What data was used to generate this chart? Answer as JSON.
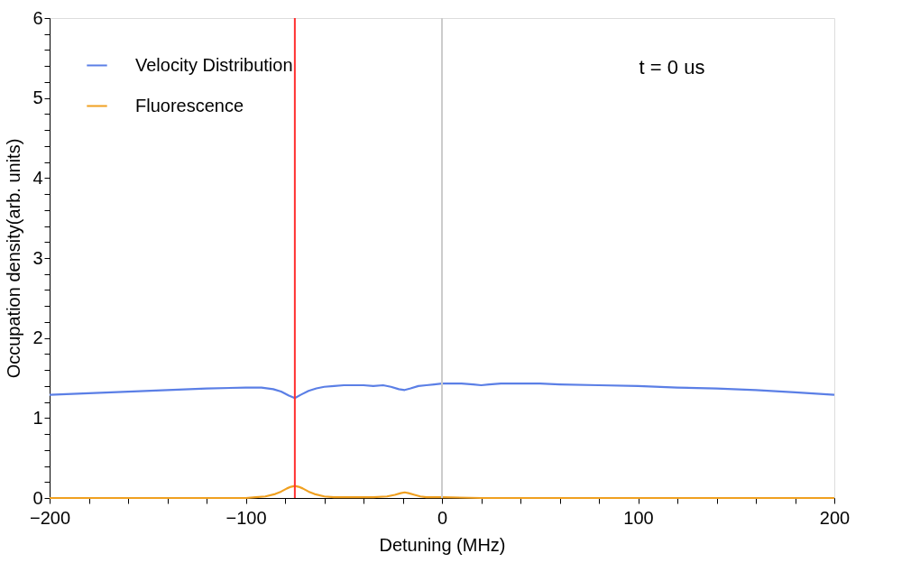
{
  "chart_data": {
    "type": "line",
    "xlabel": "Detuning (MHz)",
    "ylabel": "Occupation density(arb. units)",
    "xlim": [
      -200,
      200
    ],
    "ylim": [
      0,
      6
    ],
    "xticks": [
      -200,
      {
        "value": -180,
        "label": null
      },
      {
        "value": -160,
        "label": null
      },
      {
        "value": -140,
        "label": null
      },
      {
        "value": -120,
        "label": null
      },
      -100,
      {
        "value": -80,
        "label": null
      },
      {
        "value": -60,
        "label": null
      },
      {
        "value": -40,
        "label": null
      },
      {
        "value": -20,
        "label": null
      },
      0,
      {
        "value": 20,
        "label": null
      },
      {
        "value": 40,
        "label": null
      },
      {
        "value": 60,
        "label": null
      },
      {
        "value": 80,
        "label": null
      },
      100,
      {
        "value": 120,
        "label": null
      },
      {
        "value": 140,
        "label": null
      },
      {
        "value": 160,
        "label": null
      },
      {
        "value": 180,
        "label": null
      },
      200
    ],
    "yticks": [
      0,
      {
        "value": 0.2,
        "label": null
      },
      {
        "value": 0.4,
        "label": null
      },
      {
        "value": 0.6,
        "label": null
      },
      {
        "value": 0.8,
        "label": null
      },
      1,
      {
        "value": 1.2,
        "label": null
      },
      {
        "value": 1.4,
        "label": null
      },
      {
        "value": 1.6,
        "label": null
      },
      {
        "value": 1.8,
        "label": null
      },
      2,
      {
        "value": 2.2,
        "label": null
      },
      {
        "value": 2.4,
        "label": null
      },
      {
        "value": 2.6,
        "label": null
      },
      {
        "value": 2.8,
        "label": null
      },
      3,
      {
        "value": 3.2,
        "label": null
      },
      {
        "value": 3.4,
        "label": null
      },
      {
        "value": 3.6,
        "label": null
      },
      {
        "value": 3.8,
        "label": null
      },
      4,
      {
        "value": 4.2,
        "label": null
      },
      {
        "value": 4.4,
        "label": null
      },
      {
        "value": 4.6,
        "label": null
      },
      {
        "value": 4.8,
        "label": null
      },
      5,
      {
        "value": 5.2,
        "label": null
      },
      {
        "value": 5.4,
        "label": null
      },
      {
        "value": 5.6,
        "label": null
      },
      {
        "value": 5.8,
        "label": null
      },
      6
    ],
    "grid": false,
    "legend": "top left",
    "line_style": "solid",
    "marker": "none",
    "series": [
      {
        "name": "Velocity Distribution",
        "color": "#5b7fe6",
        "x": [
          -200,
          -180,
          -160,
          -140,
          -120,
          -100,
          -92,
          -86,
          -82,
          -78,
          -75,
          -72,
          -68,
          -64,
          -60,
          -55,
          -50,
          -45,
          -40,
          -35,
          -30,
          -26,
          -22,
          -19,
          -16,
          -12,
          -8,
          -4,
          0,
          10,
          16,
          20,
          24,
          30,
          40,
          50,
          60,
          80,
          100,
          120,
          140,
          160,
          180,
          200
        ],
        "values": [
          1.29,
          1.31,
          1.33,
          1.35,
          1.37,
          1.38,
          1.38,
          1.36,
          1.33,
          1.28,
          1.25,
          1.29,
          1.34,
          1.37,
          1.39,
          1.4,
          1.41,
          1.41,
          1.41,
          1.4,
          1.41,
          1.39,
          1.36,
          1.35,
          1.37,
          1.4,
          1.41,
          1.42,
          1.43,
          1.43,
          1.42,
          1.41,
          1.42,
          1.43,
          1.43,
          1.43,
          1.42,
          1.41,
          1.4,
          1.38,
          1.37,
          1.35,
          1.32,
          1.29
        ]
      },
      {
        "name": "Fluorescence",
        "color": "#f0a020",
        "x": [
          -200,
          -120,
          -100,
          -95,
          -90,
          -85,
          -82,
          -79,
          -77,
          -75,
          -73,
          -71,
          -68,
          -65,
          -60,
          -55,
          -45,
          -35,
          -28,
          -24,
          -21,
          -19,
          -17,
          -14,
          -11,
          -8,
          0,
          20,
          100,
          200
        ],
        "values": [
          0,
          0,
          0,
          0.01,
          0.02,
          0.05,
          0.08,
          0.12,
          0.14,
          0.15,
          0.14,
          0.12,
          0.08,
          0.05,
          0.02,
          0.01,
          0.01,
          0.01,
          0.02,
          0.04,
          0.06,
          0.07,
          0.06,
          0.04,
          0.02,
          0.01,
          0.01,
          0,
          0,
          0
        ]
      }
    ],
    "ref_lines": [
      {
        "axis": "x",
        "value": -75,
        "color": "#ff3030",
        "line_style": "solid"
      },
      {
        "axis": "x",
        "value": 0,
        "color": "#cccccc",
        "line_style": "solid"
      }
    ],
    "annotations": [
      "t = 0 us"
    ]
  }
}
